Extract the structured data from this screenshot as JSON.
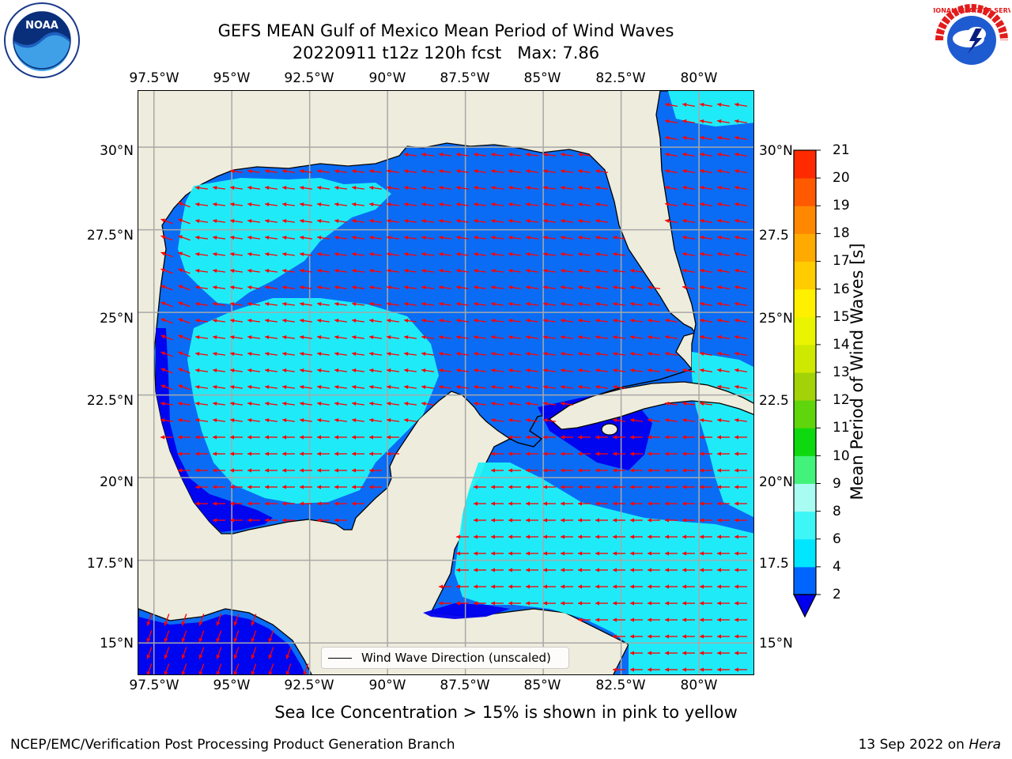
{
  "header": {
    "title_line1": "GEFS MEAN Gulf of Mexico Mean Period of Wind Waves",
    "title_line2": "20220911 t12z 120h fcst   Max: 7.86"
  },
  "logos": {
    "left": {
      "name": "noaa-logo",
      "text": "NOAA"
    },
    "right": {
      "name": "nws-logo",
      "text": "NATIONAL WEATHER SERVICE"
    }
  },
  "map": {
    "lon_labels": [
      "97.5°W",
      "95°W",
      "92.5°W",
      "90°W",
      "87.5°W",
      "85°W",
      "82.5°W",
      "80°W"
    ],
    "lat_labels_left": [
      "30°N",
      "27.5°N",
      "25°N",
      "22.5°N",
      "20°N",
      "17.5°N",
      "15°N"
    ],
    "lat_labels_right": [
      "30°N",
      "27.5",
      "25°N",
      "22.5",
      "20°N",
      "17.5",
      "15°N"
    ],
    "extent": {
      "lon_min": -98,
      "lon_max": -78.2,
      "lat_min": 14.0,
      "lat_max": 31.7
    },
    "legend_label": "Wind Wave Direction (unscaled)",
    "colors": {
      "land": "#eeecdc",
      "ocean": "#3f7ff2",
      "coastline": "#000000",
      "grid": "#a8a8a8",
      "arrows": "#ff0000"
    }
  },
  "colorbar": {
    "label": "Mean Period of Wind Waves [s]",
    "ticks": [
      "21",
      "20",
      "19",
      "18",
      "17",
      "16",
      "15",
      "14",
      "13",
      "12",
      "11",
      "10",
      "9",
      "8",
      "6",
      "4",
      "2"
    ],
    "levels": [
      2,
      4,
      6,
      8,
      9,
      10,
      11,
      12,
      13,
      14,
      15,
      16,
      17,
      18,
      19,
      20,
      21
    ],
    "colors": [
      "#0065ff",
      "#00e6ff",
      "#3ef6f6",
      "#74fafa",
      "#a8fcf2",
      "#42f27a",
      "#0ed90e",
      "#5fd50c",
      "#a2d308",
      "#cfe800",
      "#eaf400",
      "#fff000",
      "#ffcc00",
      "#ffaa00",
      "#ff8800",
      "#ff5a00",
      "#ff2a00",
      "#ff0000"
    ],
    "under_color": "#0000ee"
  },
  "footer": {
    "subtitle": "Sea Ice Concentration > 15% is shown in pink to yellow",
    "left": "NCEP/EMC/Verification Post Processing Product Generation Branch",
    "right_prefix": "13 Sep 2022 on ",
    "right_host": "Hera"
  }
}
